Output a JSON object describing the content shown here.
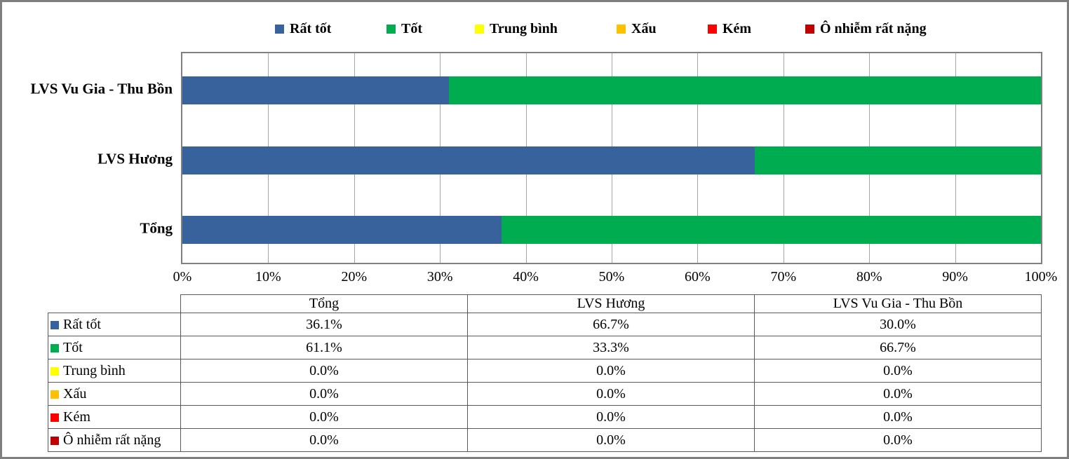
{
  "frame": {
    "background": "#ffffff",
    "border_color": "#7f7f7f"
  },
  "chart_data": {
    "type": "bar",
    "orientation": "horizontal",
    "stacked": "100%",
    "title": "",
    "categories": [
      "LVS Vu Gia - Thu Bồn",
      "LVS Hương",
      "Tổng"
    ],
    "series": [
      {
        "name": "Rất tốt",
        "color": "#37629b",
        "values": [
          30.0,
          66.7,
          36.1
        ]
      },
      {
        "name": "Tốt",
        "color": "#00ac50",
        "values": [
          66.7,
          33.3,
          61.1
        ]
      },
      {
        "name": "Trung bình",
        "color": "#ffff00",
        "values": [
          0.0,
          0.0,
          0.0
        ]
      },
      {
        "name": "Xấu",
        "color": "#ffc000",
        "values": [
          0.0,
          0.0,
          0.0
        ]
      },
      {
        "name": "Kém",
        "color": "#ff0000",
        "values": [
          0.0,
          0.0,
          0.0
        ]
      },
      {
        "name": "Ô nhiễm rất nặng",
        "color": "#c00000",
        "values": [
          0.0,
          0.0,
          0.0
        ]
      }
    ],
    "x_axis": {
      "min": 0,
      "max": 100,
      "tick_labels": [
        "0%",
        "10%",
        "20%",
        "30%",
        "40%",
        "50%",
        "60%",
        "70%",
        "80%",
        "90%",
        "100%"
      ]
    },
    "legend_position": "top",
    "grid": "vertical",
    "gridline_color": "#a6a6a6",
    "plot_border_color": "#808080"
  },
  "table": {
    "columns": [
      "Tổng",
      "LVS Hương",
      "LVS Vu Gia - Thu Bồn"
    ],
    "rows": [
      {
        "label": "Rất tốt",
        "swatch": "#37629b",
        "values": [
          "36.1%",
          "66.7%",
          "30.0%"
        ]
      },
      {
        "label": "Tốt",
        "swatch": "#00ac50",
        "values": [
          "61.1%",
          "33.3%",
          "66.7%"
        ]
      },
      {
        "label": "Trung bình",
        "swatch": "#ffff00",
        "values": [
          "0.0%",
          "0.0%",
          "0.0%"
        ]
      },
      {
        "label": "Xấu",
        "swatch": "#ffc000",
        "values": [
          "0.0%",
          "0.0%",
          "0.0%"
        ]
      },
      {
        "label": "Kém",
        "swatch": "#ff0000",
        "values": [
          "0.0%",
          "0.0%",
          "0.0%"
        ]
      },
      {
        "label": "Ô nhiễm rất nặng",
        "swatch": "#c00000",
        "values": [
          "0.0%",
          "0.0%",
          "0.0%"
        ]
      }
    ]
  }
}
